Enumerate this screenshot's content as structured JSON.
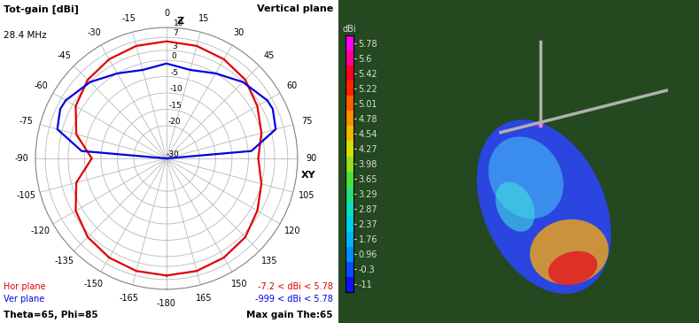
{
  "chart_data": {
    "type": "polar",
    "title": "Vertical plane",
    "subtitle": "28.4 MHz",
    "radial_label": "Tot-gain [dBi]",
    "xlim": [
      -180,
      180
    ],
    "xticks": [
      -180,
      -165,
      -150,
      -135,
      -120,
      -105,
      -90,
      -75,
      -60,
      -45,
      -30,
      -15,
      0,
      15,
      30,
      45,
      60,
      75,
      90,
      105,
      120,
      135,
      150,
      165
    ],
    "ylim": [
      -30,
      10
    ],
    "yticks": [
      -30,
      -20,
      -15,
      -10,
      -5,
      0,
      3,
      7,
      10
    ],
    "grid": true,
    "direction_labels": [
      {
        "angle": 0,
        "label": "Z"
      },
      {
        "angle": 90,
        "label": "XY"
      }
    ],
    "series": [
      {
        "name": "Hor plane",
        "color": "#e00000",
        "range_label": "-7.2 < dBi < 5.78",
        "x": [
          -180,
          -165,
          -150,
          -135,
          -120,
          -105,
          -90,
          -75,
          -60,
          -45,
          -30,
          -15,
          0,
          15,
          30,
          45,
          60,
          75,
          90,
          105,
          120,
          135,
          150,
          165,
          180
        ],
        "values": [
          5.78,
          5.6,
          5.0,
          4.0,
          2.0,
          -1.5,
          -7.2,
          -1.5,
          2.0,
          4.0,
          5.0,
          5.6,
          5.78,
          5.6,
          5.0,
          4.0,
          2.0,
          0,
          -2,
          0,
          2.0,
          4.0,
          5.0,
          5.6,
          5.78
        ]
      },
      {
        "name": "Ver plane",
        "color": "#0000e0",
        "range_label": "-999 < dBi < 5.78",
        "x": [
          -90,
          -85,
          -75,
          -65,
          -60,
          -45,
          -30,
          -15,
          0,
          15,
          30,
          45,
          60,
          65,
          75,
          85,
          90
        ],
        "values": [
          -30,
          -4,
          4.5,
          5.78,
          5.5,
          3,
          0,
          -2,
          -1,
          -2,
          0,
          3,
          5.5,
          5.78,
          4.5,
          -4,
          -30
        ]
      }
    ],
    "annotations": [
      "Theta=65, Phi=85",
      "Max gain The:65"
    ],
    "colorbar": {
      "label": "dBi",
      "ticks": [
        5.78,
        5.6,
        5.42,
        5.22,
        5.01,
        4.78,
        4.54,
        4.27,
        3.98,
        3.65,
        3.29,
        2.87,
        2.37,
        1.76,
        0.96,
        -0.3,
        -11
      ]
    }
  }
}
